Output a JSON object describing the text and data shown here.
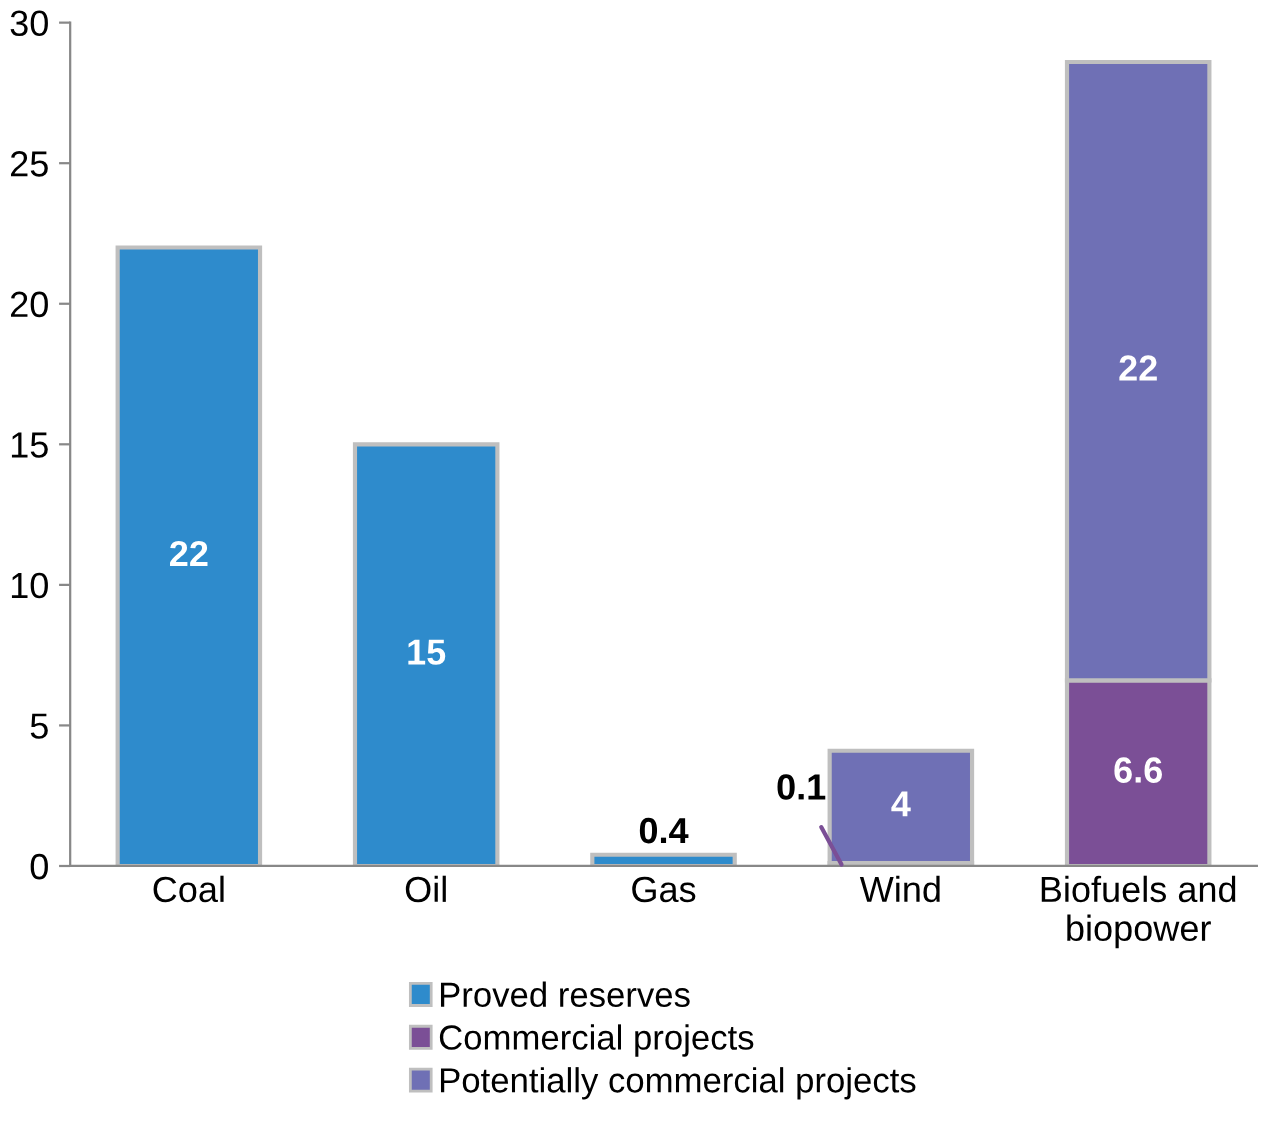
{
  "chart_data": {
    "type": "bar",
    "stacked": true,
    "categories": [
      "Coal",
      "Oil",
      "Gas",
      "Wind",
      "Biofuels and\nbiopower"
    ],
    "series": [
      {
        "name": "Proved reserves",
        "color": "#2e8bcc",
        "values": [
          22,
          15,
          0.4,
          null,
          null
        ]
      },
      {
        "name": "Commercial projects",
        "color": "#7b4f96",
        "values": [
          null,
          null,
          null,
          0.1,
          6.6
        ]
      },
      {
        "name": "Potentially commercial projects",
        "color": "#6f70b5",
        "values": [
          null,
          null,
          null,
          4,
          22
        ]
      }
    ],
    "ylim": [
      0,
      30
    ],
    "yticks": [
      0,
      5,
      10,
      15,
      20,
      25,
      30
    ],
    "grid": false,
    "legend": "bottom",
    "data_labels": true
  }
}
